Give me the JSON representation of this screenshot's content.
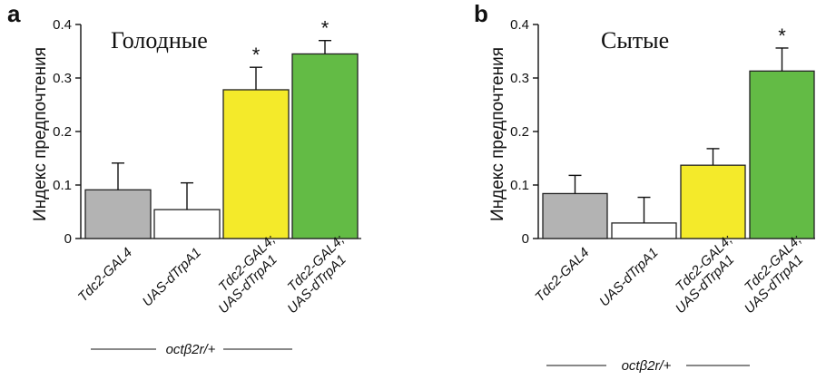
{
  "chart_data": [
    {
      "type": "bar",
      "panel_letter": "a",
      "title": "Голодные",
      "ylabel": "Индекс предпочтения",
      "ylim": [
        0,
        0.4
      ],
      "yticks": [
        "0",
        "0.1",
        "0.2",
        "0.3",
        "0.4"
      ],
      "ytick_values": [
        0,
        0.1,
        0.2,
        0.3,
        0.4
      ],
      "categories": [
        [
          "Tdc2-GAL4"
        ],
        [
          "UAS-dTrpA1"
        ],
        [
          "Tdc2-GAL4;",
          "UAS-dTrpA1"
        ],
        [
          "Tdc2-GAL4;",
          "UAS-dTrpA1"
        ]
      ],
      "values": [
        0.091,
        0.054,
        0.278,
        0.345
      ],
      "errors": [
        0.05,
        0.05,
        0.042,
        0.025
      ],
      "colors": [
        "#b3b3b3",
        "#ffffff",
        "#f4ea2a",
        "#63bb45"
      ],
      "significance": [
        "",
        "",
        "*",
        "*"
      ],
      "genotype_label": "octβ2r/+"
    },
    {
      "type": "bar",
      "panel_letter": "b",
      "title": "Сытые",
      "ylabel": "Индекс предпочтения",
      "ylim": [
        0,
        0.4
      ],
      "yticks": [
        "0",
        "0.1",
        "0.2",
        "0.3",
        "0.4"
      ],
      "ytick_values": [
        0,
        0.1,
        0.2,
        0.3,
        0.4
      ],
      "categories": [
        [
          "Tdc2-GAL4"
        ],
        [
          "UAS-dTrpA1"
        ],
        [
          "Tdc2-GAL4;",
          "UAS-dTrpA1"
        ],
        [
          "Tdc2-GAL4;",
          "UAS-dTrpA1"
        ]
      ],
      "values": [
        0.084,
        0.029,
        0.137,
        0.313
      ],
      "errors": [
        0.034,
        0.048,
        0.031,
        0.043
      ],
      "colors": [
        "#b3b3b3",
        "#ffffff",
        "#f4ea2a",
        "#63bb45"
      ],
      "significance": [
        "",
        "",
        "",
        "*"
      ],
      "genotype_label": "octβ2r/+"
    }
  ]
}
